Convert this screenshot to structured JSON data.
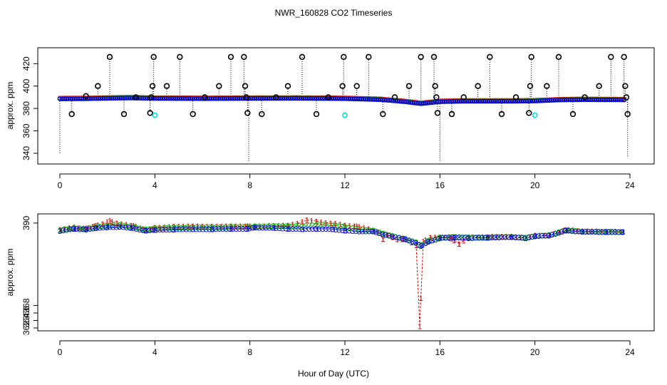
{
  "title": "NWR_160828  CO2 Timeseries",
  "xlabel": "Hour of Day (UTC)",
  "colors": {
    "red": "#dd0000",
    "green": "#00bb00",
    "blue": "#0000dd",
    "cyan": "#00dddd",
    "black": "#000000",
    "purple": "#aa00aa"
  },
  "chart_data": [
    {
      "type": "scatter",
      "panel": "top",
      "ylabel": "approx. ppm",
      "xlim": [
        0,
        24
      ],
      "ylim": [
        333,
        431
      ],
      "x_ticks": [
        "0",
        "4",
        "8",
        "12",
        "16",
        "20",
        "24"
      ],
      "y_ticks": [
        "340",
        "360",
        "380",
        "400",
        "420"
      ],
      "y_tick_values": [
        340,
        360,
        380,
        400,
        420
      ],
      "series_note": "Continuous CO2 trace (red/green/blue) with black ring outliers and cyan points",
      "baseline": [
        [
          0.0,
          388.5
        ],
        [
          1.0,
          388.6
        ],
        [
          2.0,
          389.0
        ],
        [
          3.0,
          389.3
        ],
        [
          4.0,
          388.9
        ],
        [
          6.0,
          388.7
        ],
        [
          8.0,
          388.9
        ],
        [
          10.0,
          389.0
        ],
        [
          12.0,
          388.7
        ],
        [
          13.5,
          387.8
        ],
        [
          14.5,
          386.0
        ],
        [
          15.2,
          384.2
        ],
        [
          16.0,
          386.0
        ],
        [
          17.0,
          386.4
        ],
        [
          19.0,
          386.4
        ],
        [
          20.0,
          386.6
        ],
        [
          21.0,
          387.5
        ],
        [
          22.0,
          387.8
        ],
        [
          23.8,
          387.6
        ]
      ],
      "outliers": [
        {
          "x": 0.5,
          "y": 375
        },
        {
          "x": 1.1,
          "y": 391
        },
        {
          "x": 1.6,
          "y": 400
        },
        {
          "x": 2.1,
          "y": 426
        },
        {
          "x": 2.7,
          "y": 375
        },
        {
          "x": 3.2,
          "y": 390
        },
        {
          "x": 3.8,
          "y": 376
        },
        {
          "x": 3.85,
          "y": 390
        },
        {
          "x": 3.9,
          "y": 400
        },
        {
          "x": 3.95,
          "y": 426
        },
        {
          "x": 4.5,
          "y": 400
        },
        {
          "x": 5.05,
          "y": 426
        },
        {
          "x": 5.6,
          "y": 375
        },
        {
          "x": 6.1,
          "y": 390
        },
        {
          "x": 6.7,
          "y": 400
        },
        {
          "x": 7.2,
          "y": 426
        },
        {
          "x": 7.75,
          "y": 426
        },
        {
          "x": 7.8,
          "y": 400
        },
        {
          "x": 7.85,
          "y": 390
        },
        {
          "x": 7.9,
          "y": 376
        },
        {
          "x": 8.5,
          "y": 375
        },
        {
          "x": 9.1,
          "y": 390
        },
        {
          "x": 9.6,
          "y": 400
        },
        {
          "x": 10.2,
          "y": 426
        },
        {
          "x": 10.8,
          "y": 375
        },
        {
          "x": 11.3,
          "y": 390
        },
        {
          "x": 11.9,
          "y": 400
        },
        {
          "x": 11.95,
          "y": 426
        },
        {
          "x": 12.5,
          "y": 400
        },
        {
          "x": 13.0,
          "y": 426
        },
        {
          "x": 13.6,
          "y": 375
        },
        {
          "x": 14.1,
          "y": 390
        },
        {
          "x": 14.7,
          "y": 400
        },
        {
          "x": 15.2,
          "y": 426
        },
        {
          "x": 15.75,
          "y": 426
        },
        {
          "x": 15.8,
          "y": 400
        },
        {
          "x": 15.85,
          "y": 390
        },
        {
          "x": 15.9,
          "y": 376
        },
        {
          "x": 16.5,
          "y": 375
        },
        {
          "x": 17.0,
          "y": 390
        },
        {
          "x": 17.6,
          "y": 400
        },
        {
          "x": 18.1,
          "y": 426
        },
        {
          "x": 18.6,
          "y": 375
        },
        {
          "x": 19.2,
          "y": 390
        },
        {
          "x": 19.75,
          "y": 376
        },
        {
          "x": 19.8,
          "y": 400
        },
        {
          "x": 19.85,
          "y": 426
        },
        {
          "x": 20.5,
          "y": 400
        },
        {
          "x": 21.0,
          "y": 426
        },
        {
          "x": 21.6,
          "y": 375
        },
        {
          "x": 22.1,
          "y": 390
        },
        {
          "x": 22.7,
          "y": 400
        },
        {
          "x": 23.2,
          "y": 426
        },
        {
          "x": 23.75,
          "y": 426
        },
        {
          "x": 23.8,
          "y": 400
        },
        {
          "x": 23.85,
          "y": 390
        },
        {
          "x": 23.9,
          "y": 375
        }
      ],
      "cyan_points": [
        {
          "x": 4.0,
          "y": 374
        },
        {
          "x": 12.0,
          "y": 374
        },
        {
          "x": 20.0,
          "y": 374
        }
      ],
      "drop_lines": [
        {
          "x": 0.0,
          "y": 340
        },
        {
          "x": 7.95,
          "y": 333
        },
        {
          "x": 16.0,
          "y": 333
        },
        {
          "x": 23.9,
          "y": 336
        }
      ]
    },
    {
      "type": "line",
      "panel": "bottom",
      "ylabel": "approx. ppm",
      "xlim": [
        0,
        24
      ],
      "ylim": [
        362,
        391.5
      ],
      "x_ticks": [
        "0",
        "4",
        "8",
        "12",
        "16",
        "20",
        "24"
      ],
      "y_ticks": [
        "362",
        "364",
        "366",
        "368",
        "390"
      ],
      "y_tick_values": [
        362,
        364,
        366,
        368,
        390
      ],
      "y_tick_note": "Axis labels printed as shown on the original image",
      "series": [
        {
          "name": "1",
          "color": "red",
          "symbol": "1",
          "points": [
            [
              0.0,
              388.3
            ],
            [
              0.6,
              388.9
            ],
            [
              1.1,
              388.6
            ],
            [
              1.5,
              389.3
            ],
            [
              1.8,
              389.8
            ],
            [
              2.1,
              390.6
            ],
            [
              2.4,
              390.0
            ],
            [
              2.8,
              389.6
            ],
            [
              3.1,
              389.3
            ],
            [
              3.5,
              388.4
            ],
            [
              3.9,
              388.4
            ],
            [
              4.0,
              388.8
            ],
            [
              4.8,
              389.1
            ],
            [
              5.6,
              389.2
            ],
            [
              6.4,
              389.1
            ],
            [
              7.2,
              389.2
            ],
            [
              7.9,
              389.2
            ],
            [
              8.2,
              389.2
            ],
            [
              9.0,
              389.3
            ],
            [
              9.6,
              389.4
            ],
            [
              10.0,
              389.9
            ],
            [
              10.4,
              390.8
            ],
            [
              10.8,
              390.5
            ],
            [
              11.2,
              390.1
            ],
            [
              11.6,
              389.9
            ],
            [
              12.0,
              389.4
            ],
            [
              12.5,
              389.2
            ],
            [
              13.0,
              388.5
            ],
            [
              13.4,
              387.6
            ],
            [
              13.6,
              385.8
            ],
            [
              13.8,
              386.8
            ],
            [
              14.2,
              385.7
            ],
            [
              14.6,
              385.6
            ],
            [
              15.0,
              384.1
            ],
            [
              15.15,
              362.5
            ],
            [
              15.3,
              385.1
            ],
            [
              15.6,
              386.2
            ],
            [
              16.0,
              386.3
            ],
            [
              16.5,
              385.9
            ],
            [
              16.8,
              384.5
            ],
            [
              17.2,
              386.2
            ],
            [
              18.0,
              386.4
            ],
            [
              19.0,
              386.5
            ],
            [
              19.6,
              386.0
            ],
            [
              20.0,
              386.7
            ],
            [
              20.6,
              386.8
            ],
            [
              21.0,
              387.6
            ],
            [
              21.3,
              388.3
            ],
            [
              22.0,
              387.9
            ],
            [
              23.0,
              387.8
            ],
            [
              23.7,
              387.7
            ]
          ]
        },
        {
          "name": "2",
          "color": "green",
          "symbol": "2",
          "points": [
            [
              0.0,
              388.2
            ],
            [
              0.6,
              388.7
            ],
            [
              1.1,
              388.5
            ],
            [
              1.5,
              389.0
            ],
            [
              2.0,
              389.3
            ],
            [
              2.5,
              389.5
            ],
            [
              3.1,
              389.0
            ],
            [
              3.6,
              388.3
            ],
            [
              4.0,
              388.6
            ],
            [
              4.8,
              388.8
            ],
            [
              5.6,
              388.9
            ],
            [
              6.4,
              388.9
            ],
            [
              7.2,
              389.0
            ],
            [
              7.9,
              389.0
            ],
            [
              8.2,
              389.1
            ],
            [
              9.0,
              389.2
            ],
            [
              9.6,
              389.2
            ],
            [
              10.2,
              389.3
            ],
            [
              10.8,
              389.5
            ],
            [
              11.5,
              389.4
            ],
            [
              12.0,
              389.0
            ],
            [
              12.6,
              388.3
            ],
            [
              13.2,
              388.1
            ],
            [
              13.6,
              387.3
            ],
            [
              14.0,
              386.6
            ],
            [
              14.5,
              385.9
            ],
            [
              15.0,
              384.9
            ],
            [
              15.2,
              384.0
            ],
            [
              15.5,
              385.3
            ],
            [
              16.0,
              386.2
            ],
            [
              16.6,
              386.4
            ],
            [
              17.2,
              386.3
            ],
            [
              18.0,
              386.3
            ],
            [
              19.0,
              386.4
            ],
            [
              19.6,
              386.2
            ],
            [
              20.0,
              386.6
            ],
            [
              20.6,
              386.8
            ],
            [
              21.0,
              387.6
            ],
            [
              21.3,
              388.2
            ],
            [
              22.0,
              387.8
            ],
            [
              23.0,
              387.8
            ],
            [
              23.7,
              387.7
            ]
          ]
        },
        {
          "name": "3",
          "color": "blue",
          "symbol": "3",
          "points": [
            [
              0.0,
              387.9
            ],
            [
              0.6,
              388.5
            ],
            [
              1.1,
              388.3
            ],
            [
              1.5,
              388.6
            ],
            [
              2.0,
              388.9
            ],
            [
              2.5,
              389.0
            ],
            [
              3.0,
              388.7
            ],
            [
              3.6,
              388.0
            ],
            [
              4.0,
              388.2
            ],
            [
              4.8,
              388.3
            ],
            [
              5.6,
              388.4
            ],
            [
              6.4,
              388.4
            ],
            [
              7.2,
              388.5
            ],
            [
              7.9,
              388.5
            ],
            [
              8.2,
              388.8
            ],
            [
              9.0,
              388.7
            ],
            [
              9.6,
              388.5
            ],
            [
              10.2,
              388.4
            ],
            [
              10.8,
              388.5
            ],
            [
              11.5,
              388.4
            ],
            [
              12.0,
              388.0
            ],
            [
              12.6,
              387.8
            ],
            [
              13.2,
              387.8
            ],
            [
              13.6,
              387.0
            ],
            [
              14.0,
              386.4
            ],
            [
              14.5,
              385.8
            ],
            [
              15.0,
              384.7
            ],
            [
              15.2,
              383.9
            ],
            [
              15.5,
              385.0
            ],
            [
              16.0,
              386.0
            ],
            [
              16.6,
              386.2
            ],
            [
              17.2,
              386.0
            ],
            [
              18.0,
              386.1
            ],
            [
              19.0,
              386.3
            ],
            [
              19.6,
              386.0
            ],
            [
              20.0,
              386.5
            ],
            [
              20.6,
              386.7
            ],
            [
              21.0,
              387.4
            ],
            [
              21.3,
              388.0
            ],
            [
              22.0,
              387.7
            ],
            [
              23.0,
              387.6
            ],
            [
              23.7,
              387.6
            ]
          ]
        }
      ]
    }
  ]
}
